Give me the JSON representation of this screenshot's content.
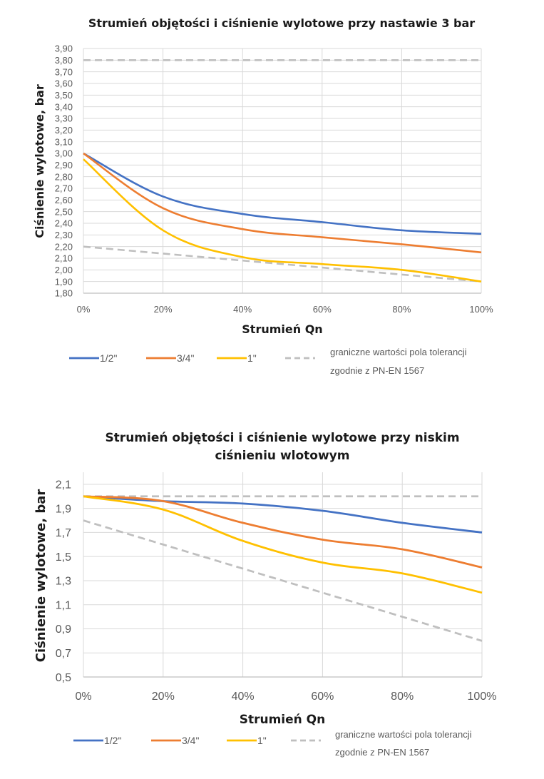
{
  "chart_data": [
    {
      "type": "line",
      "title": "Strumień objętości i ciśnienie wylotowe przy nastawie 3 bar",
      "xlabel": "Strumień Qn",
      "ylabel": "Ciśnienie wylotowe, bar",
      "x": [
        0,
        20,
        40,
        60,
        80,
        100
      ],
      "x_tick_labels": [
        "0%",
        "20%",
        "40%",
        "60%",
        "80%",
        "100%"
      ],
      "xlim": [
        0,
        100
      ],
      "ylim": [
        1.8,
        3.9
      ],
      "y_tick_labels": [
        "1,80",
        "1,90",
        "2,00",
        "2,10",
        "2,20",
        "2,30",
        "2,40",
        "2,50",
        "2,60",
        "2,70",
        "2,80",
        "2,90",
        "3,00",
        "3,10",
        "3,20",
        "3,30",
        "3,40",
        "3,50",
        "3,60",
        "3,70",
        "3,80",
        "3,90"
      ],
      "y_ticks": [
        1.8,
        1.9,
        2.0,
        2.1,
        2.2,
        2.3,
        2.4,
        2.5,
        2.6,
        2.7,
        2.8,
        2.9,
        3.0,
        3.1,
        3.2,
        3.3,
        3.4,
        3.5,
        3.6,
        3.7,
        3.8,
        3.9
      ],
      "grid": true,
      "legend_position": "bottom",
      "series": [
        {
          "name": "1/2\"",
          "color": "#4472C4",
          "dashed": false,
          "values": [
            3.0,
            2.63,
            2.48,
            2.41,
            2.34,
            2.31
          ]
        },
        {
          "name": "3/4\"",
          "color": "#ED7D31",
          "dashed": false,
          "values": [
            3.0,
            2.53,
            2.35,
            2.28,
            2.22,
            2.15
          ]
        },
        {
          "name": "1\"",
          "color": "#FFC000",
          "dashed": false,
          "values": [
            2.95,
            2.34,
            2.11,
            2.05,
            2.0,
            1.9
          ]
        },
        {
          "name": "graniczne wartości pola tolerancji zgodnie z PN-EN 1567",
          "name_lines": [
            "graniczne wartości pola tolerancji",
            "zgodnie z PN-EN 1567"
          ],
          "color": "#BFBFBF",
          "dashed": true,
          "values": [
            2.2,
            2.14,
            2.08,
            2.02,
            1.96,
            1.9
          ]
        },
        {
          "name": "graniczne wartości pola tolerancji (górna)",
          "legend": false,
          "color": "#BFBFBF",
          "dashed": true,
          "values": [
            3.8,
            3.8,
            3.8,
            3.8,
            3.8,
            3.8
          ]
        }
      ]
    },
    {
      "type": "line",
      "title": "Strumień objętości i ciśnienie wylotowe przy niskim ciśnieniu wlotowym",
      "title_lines": [
        "Strumień objętości i ciśnienie wylotowe przy niskim",
        "ciśnieniu wlotowym"
      ],
      "xlabel": "Strumień Qn",
      "ylabel": "Ciśnienie wylotowe, bar",
      "x": [
        0,
        20,
        40,
        60,
        80,
        100
      ],
      "x_tick_labels": [
        "0%",
        "20%",
        "40%",
        "60%",
        "80%",
        "100%"
      ],
      "xlim": [
        0,
        100
      ],
      "ylim": [
        0.5,
        2.2
      ],
      "y_tick_labels": [
        "0,5",
        "0,7",
        "0,9",
        "1,1",
        "1,3",
        "1,5",
        "1,7",
        "1,9",
        "2,1"
      ],
      "y_ticks": [
        0.5,
        0.7,
        0.9,
        1.1,
        1.3,
        1.5,
        1.7,
        1.9,
        2.1
      ],
      "grid": true,
      "legend_position": "bottom",
      "series": [
        {
          "name": "1/2\"",
          "color": "#4472C4",
          "dashed": false,
          "values": [
            2.0,
            1.96,
            1.94,
            1.88,
            1.78,
            1.7
          ]
        },
        {
          "name": "3/4\"",
          "color": "#ED7D31",
          "dashed": false,
          "values": [
            2.0,
            1.96,
            1.78,
            1.64,
            1.56,
            1.41
          ]
        },
        {
          "name": "1\"",
          "color": "#FFC000",
          "dashed": false,
          "values": [
            2.0,
            1.89,
            1.63,
            1.45,
            1.36,
            1.2
          ]
        },
        {
          "name": "graniczne wartości pola tolerancji zgodnie z PN-EN 1567",
          "name_lines": [
            "graniczne wartości pola tolerancji",
            "zgodnie z PN-EN 1567"
          ],
          "color": "#BFBFBF",
          "dashed": true,
          "values": [
            1.8,
            1.6,
            1.4,
            1.2,
            1.0,
            0.8
          ]
        },
        {
          "name": "graniczne wartości pola tolerancji (górna)",
          "legend": false,
          "color": "#BFBFBF",
          "dashed": true,
          "values": [
            2.0,
            2.0,
            2.0,
            2.0,
            2.0,
            2.0
          ]
        }
      ]
    }
  ]
}
